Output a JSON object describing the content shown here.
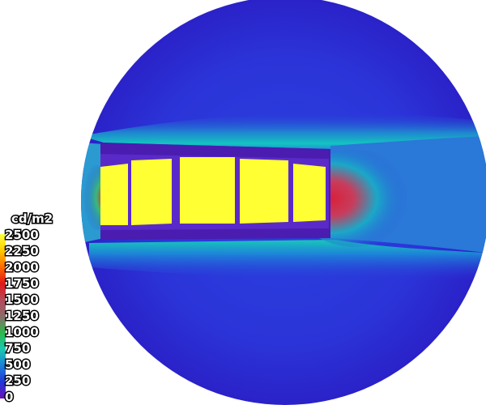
{
  "legend": {
    "unit": "cd/m2",
    "ticks": [
      "2500",
      "2250",
      "2000",
      "1750",
      "1500",
      "1250",
      "1000",
      "750",
      "500",
      "250",
      "0"
    ],
    "gradient_colors": [
      "#ffff40",
      "#ffcc00",
      "#ff6a00",
      "#e01818",
      "#b34a5a",
      "#8c6a6a",
      "#2bb84a",
      "#19c8b0",
      "#1a7fd8",
      "#2236d8",
      "#6a10b8"
    ]
  },
  "scene": {
    "background": "#ffffff",
    "dome_base_color": "#2a31d6",
    "window_color": "#ffff33",
    "hot_spot_color": "#d8203a"
  }
}
